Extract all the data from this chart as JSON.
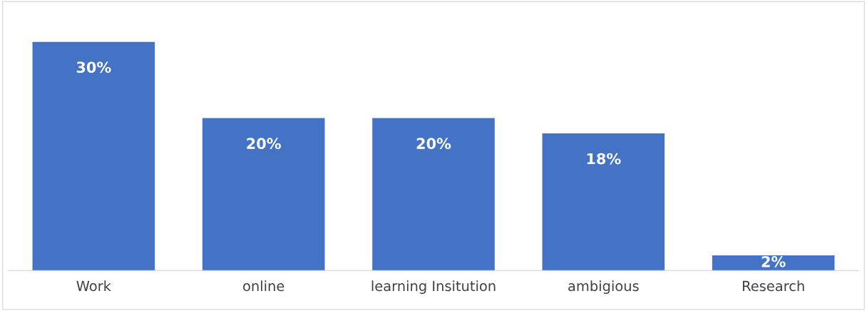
{
  "chart_data": {
    "type": "bar",
    "categories": [
      "Work",
      "online",
      "learning Insitution",
      "ambigious",
      "Research"
    ],
    "values": [
      30,
      20,
      20,
      18,
      2
    ],
    "value_labels": [
      "30%",
      "20%",
      "20%",
      "18%",
      "2%"
    ],
    "color": "#4472c4",
    "grid": false,
    "legend": false
  }
}
